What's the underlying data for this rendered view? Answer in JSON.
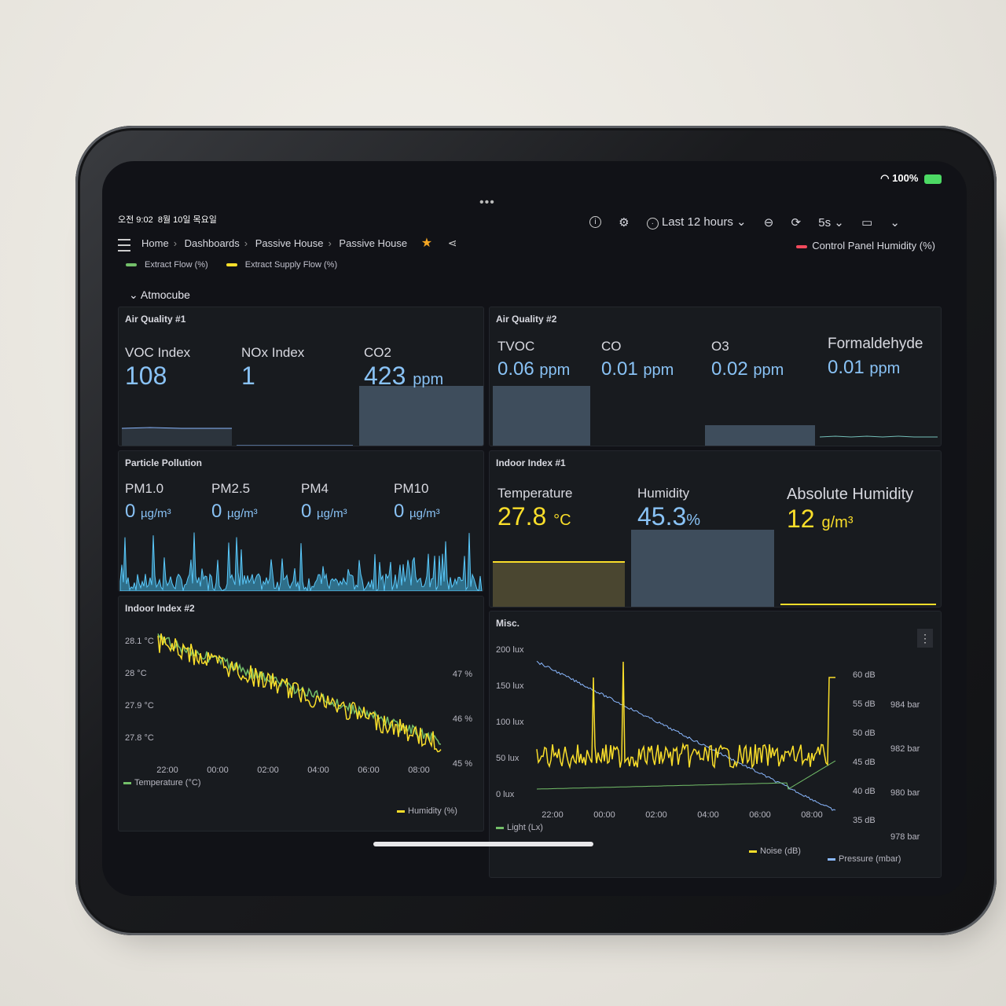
{
  "status": {
    "time": "오전 9:02",
    "date": "8월 10일 목요일",
    "battery": "100%"
  },
  "nav": {
    "breadcrumbs": [
      "Home",
      "Dashboards",
      "Passive House",
      "Passive House"
    ],
    "time_range": "Last 12 hours",
    "refresh": "5s"
  },
  "legend_top": {
    "label": "Control Panel Humidity (%)",
    "color": "#f2495c"
  },
  "legend_row": [
    {
      "label": "Extract Flow (%)",
      "color": "#73bf69"
    },
    {
      "label": "Extract Supply Flow (%)",
      "color": "#fade2a"
    }
  ],
  "section": "Atmocube",
  "air_quality_1": {
    "title": "Air Quality #1",
    "stats": [
      {
        "label": "VOC Index",
        "value": "108",
        "unit": ""
      },
      {
        "label": "NOx Index",
        "value": "1",
        "unit": ""
      },
      {
        "label": "CO2",
        "value": "423",
        "unit": "ppm"
      }
    ]
  },
  "air_quality_2": {
    "title": "Air Quality #2",
    "stats": [
      {
        "label": "TVOC",
        "value": "0.06",
        "unit": "ppm"
      },
      {
        "label": "CO",
        "value": "0.01",
        "unit": "ppm"
      },
      {
        "label": "O3",
        "value": "0.02",
        "unit": "ppm"
      },
      {
        "label": "Formaldehyde",
        "value": "0.01",
        "unit": "ppm"
      }
    ]
  },
  "particle": {
    "title": "Particle Pollution",
    "stats": [
      {
        "label": "PM1.0",
        "value": "0",
        "unit": "µg/m³"
      },
      {
        "label": "PM2.5",
        "value": "0",
        "unit": "µg/m³"
      },
      {
        "label": "PM4",
        "value": "0",
        "unit": "µg/m³"
      },
      {
        "label": "PM10",
        "value": "0",
        "unit": "µg/m³"
      }
    ]
  },
  "indoor_1": {
    "title": "Indoor Index #1",
    "stats": [
      {
        "label": "Temperature",
        "value": "27.8",
        "unit": "°C"
      },
      {
        "label": "Humidity",
        "value": "45.3",
        "unit": "%"
      },
      {
        "label": "Absolute Humidity",
        "value": "12",
        "unit": "g/m³"
      }
    ]
  },
  "indoor_2": {
    "title": "Indoor Index #2",
    "y_left": [
      "28.1 °C",
      "28 °C",
      "27.9 °C",
      "27.8 °C"
    ],
    "y_right": [
      "47 %",
      "46 %",
      "45 %"
    ],
    "x": [
      "22:00",
      "00:00",
      "02:00",
      "04:00",
      "06:00",
      "08:00"
    ],
    "legend": [
      "Temperature (°C)",
      "Humidity (%)"
    ]
  },
  "misc": {
    "title": "Misc.",
    "y_left": [
      "200 lux",
      "150 lux",
      "100 lux",
      "50 lux",
      "0 lux"
    ],
    "y_right_db": [
      "60 dB",
      "55 dB",
      "50 dB",
      "45 dB",
      "40 dB",
      "35 dB"
    ],
    "y_right_bar": [
      "984 bar",
      "982 bar",
      "980 bar",
      "978 bar"
    ],
    "x": [
      "22:00",
      "00:00",
      "02:00",
      "04:00",
      "06:00",
      "08:00"
    ],
    "legend": [
      "Light (Lx)",
      "Noise (dB)",
      "Pressure (mbar)"
    ]
  },
  "colors": {
    "green": "#73bf69",
    "yellow": "#fade2a",
    "blue": "#8ab8ff",
    "red": "#f2495c"
  }
}
